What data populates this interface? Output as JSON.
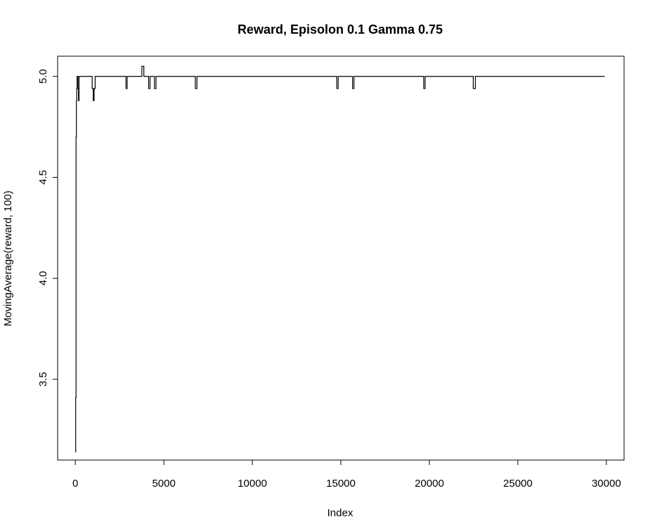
{
  "chart_data": {
    "type": "line",
    "title": "Reward, Episolon  0.1  Gamma  0.75",
    "xlabel": "Index",
    "ylabel": "MovingAverage(reward, 100)",
    "xlim": [
      -1000,
      31000
    ],
    "ylim": [
      3.1,
      5.1
    ],
    "x_ticks": [
      0,
      5000,
      10000,
      15000,
      20000,
      25000,
      30000
    ],
    "x_tick_labels": [
      "0",
      "5000",
      "10000",
      "15000",
      "20000",
      "25000",
      "30000"
    ],
    "y_ticks": [
      3.5,
      4.0,
      4.5,
      5.0
    ],
    "y_tick_labels": [
      "3.5",
      "4.0",
      "4.5",
      "5.0"
    ],
    "grid": false,
    "legend": "none",
    "line_color": "#000000",
    "series": [
      {
        "x": [
          1,
          20,
          20,
          40,
          40,
          60,
          60,
          80,
          80,
          100,
          100,
          150,
          150,
          180,
          180,
          210,
          210,
          950,
          950,
          1010,
          1010,
          1060,
          1060,
          1120,
          1120,
          2860,
          2860,
          2930,
          2930,
          3760,
          3760,
          3870,
          3870,
          4140,
          4140,
          4220,
          4220,
          4470,
          4470,
          4560,
          4560,
          6780,
          6780,
          6870,
          6870,
          14770,
          14770,
          14850,
          14850,
          15660,
          15660,
          15740,
          15740,
          19680,
          19680,
          19760,
          19760,
          22480,
          22480,
          22600,
          22600,
          29900
        ],
        "y": [
          3.14,
          3.14,
          3.41,
          3.41,
          4.7,
          4.7,
          4.88,
          4.88,
          4.94,
          4.94,
          5.0,
          5.0,
          4.94,
          4.94,
          4.88,
          4.88,
          5.0,
          5.0,
          4.94,
          4.94,
          4.88,
          4.88,
          4.94,
          4.94,
          5.0,
          5.0,
          4.94,
          4.94,
          5.0,
          5.0,
          5.05,
          5.05,
          5.0,
          5.0,
          4.94,
          4.94,
          5.0,
          5.0,
          4.94,
          4.94,
          5.0,
          5.0,
          4.94,
          4.94,
          5.0,
          5.0,
          4.94,
          4.94,
          5.0,
          5.0,
          4.94,
          4.94,
          5.0,
          5.0,
          4.94,
          4.94,
          5.0,
          5.0,
          4.94,
          4.94,
          5.0,
          5.0
        ]
      }
    ]
  }
}
